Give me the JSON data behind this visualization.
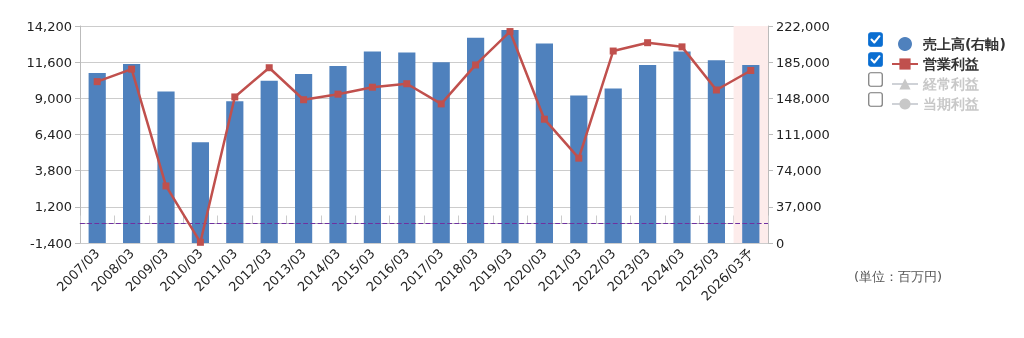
{
  "chart_data": {
    "type": "bar",
    "categories": [
      "2007/03",
      "2008/03",
      "2009/03",
      "2010/03",
      "2011/03",
      "2012/03",
      "2013/03",
      "2014/03",
      "2015/03",
      "2016/03",
      "2017/03",
      "2018/03",
      "2019/03",
      "2020/03",
      "2021/03",
      "2022/03",
      "2023/03",
      "2024/03",
      "2025/03",
      "2026/03予"
    ],
    "series": [
      {
        "name": "売上高(右軸)",
        "axis": "y2",
        "color": "#4f81bd",
        "values": [
          174000,
          183000,
          155000,
          103000,
          145000,
          166000,
          173000,
          181000,
          196000,
          195000,
          185000,
          210000,
          218000,
          204000,
          151000,
          158000,
          182000,
          196000,
          187000,
          182000
        ]
      },
      {
        "name": "営業利益",
        "type": "line",
        "color": "#c0504d",
        "marker": "square",
        "values": [
          10200,
          11100,
          2700,
          -1350,
          9100,
          11200,
          8900,
          9300,
          9800,
          10050,
          8600,
          11400,
          13800,
          7500,
          4700,
          12400,
          13000,
          12700,
          9600,
          11000
        ]
      },
      {
        "name": "経常利益",
        "type": "line",
        "color": "#c8c8c8",
        "marker": "triangle",
        "values": [
          null,
          null,
          null,
          null,
          null,
          null,
          null,
          null,
          null,
          null,
          null,
          null,
          null,
          null,
          null,
          null,
          null,
          null,
          null,
          null
        ]
      },
      {
        "name": "当期利益",
        "type": "line",
        "color": "#c8c8c8",
        "marker": "circle",
        "values": [
          null,
          null,
          null,
          null,
          null,
          null,
          null,
          null,
          null,
          null,
          null,
          null,
          null,
          null,
          null,
          null,
          null,
          null,
          null,
          null
        ]
      }
    ],
    "ylim": [
      -1400,
      14200
    ],
    "yticks": [
      {
        "value": -1400,
        "label": "-1,400"
      },
      {
        "value": 1200,
        "label": "1,200"
      },
      {
        "value": 3800,
        "label": "3,800"
      },
      {
        "value": 6400,
        "label": "6,400"
      },
      {
        "value": 9000,
        "label": "9,000"
      },
      {
        "value": 11600,
        "label": "11,600"
      },
      {
        "value": 14200,
        "label": "14,200"
      }
    ],
    "y2lim": [
      0,
      222000
    ],
    "y2ticks": [
      0,
      {
        "value": 37000,
        "label": "37,000"
      },
      {
        "value": 74000,
        "label": "74,000"
      },
      {
        "value": 111000,
        "label": "111,000"
      },
      {
        "value": 148000,
        "label": "148,000"
      },
      {
        "value": 185000,
        "label": "185,000"
      },
      {
        "value": 222000,
        "label": "222,000"
      }
    ],
    "ref_lines": [
      {
        "axis": "y",
        "value": 0,
        "color": "#7030a0",
        "line_style": "dashed"
      }
    ],
    "bands": [
      {
        "axis": "x",
        "from": "2026/03予",
        "to": "2026/03予",
        "color": "#fdeceb"
      }
    ],
    "annotations": [
      "(単位：百万円)"
    ],
    "grid": "y",
    "legend": "right"
  }
}
